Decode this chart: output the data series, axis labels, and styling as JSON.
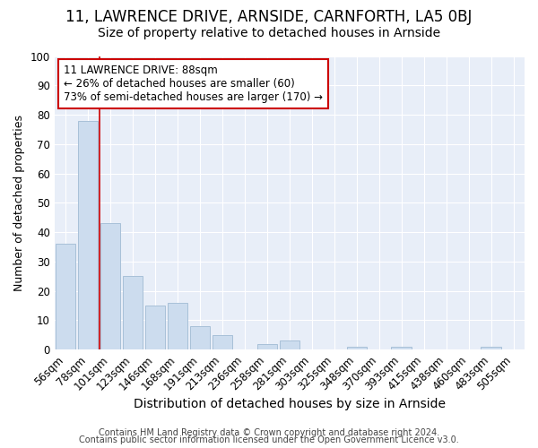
{
  "title1": "11, LAWRENCE DRIVE, ARNSIDE, CARNFORTH, LA5 0BJ",
  "title2": "Size of property relative to detached houses in Arnside",
  "xlabel": "Distribution of detached houses by size in Arnside",
  "ylabel": "Number of detached properties",
  "categories": [
    "56sqm",
    "78sqm",
    "101sqm",
    "123sqm",
    "146sqm",
    "168sqm",
    "191sqm",
    "213sqm",
    "236sqm",
    "258sqm",
    "281sqm",
    "303sqm",
    "325sqm",
    "348sqm",
    "370sqm",
    "393sqm",
    "415sqm",
    "438sqm",
    "460sqm",
    "483sqm",
    "505sqm"
  ],
  "values": [
    36,
    78,
    43,
    25,
    15,
    16,
    8,
    5,
    0,
    2,
    3,
    0,
    0,
    1,
    0,
    1,
    0,
    0,
    0,
    1,
    0
  ],
  "bar_color": "#ccdcee",
  "bar_edge_color": "#a8c0d8",
  "bar_linewidth": 0.7,
  "red_line_x": 1.5,
  "annotation_line1": "11 LAWRENCE DRIVE: 88sqm",
  "annotation_line2": "← 26% of detached houses are smaller (60)",
  "annotation_line3": "73% of semi-detached houses are larger (170) →",
  "annotation_box_color": "#ffffff",
  "annotation_border_color": "#cc0000",
  "ylim": [
    0,
    100
  ],
  "yticks": [
    0,
    10,
    20,
    30,
    40,
    50,
    60,
    70,
    80,
    90,
    100
  ],
  "figure_bg": "#ffffff",
  "plot_bg": "#e8eef8",
  "grid_color": "#ffffff",
  "footer1": "Contains HM Land Registry data © Crown copyright and database right 2024.",
  "footer2": "Contains public sector information licensed under the Open Government Licence v3.0.",
  "title1_fontsize": 12,
  "title2_fontsize": 10,
  "xlabel_fontsize": 10,
  "ylabel_fontsize": 9,
  "tick_fontsize": 8.5,
  "annotation_fontsize": 8.5,
  "footer_fontsize": 7
}
